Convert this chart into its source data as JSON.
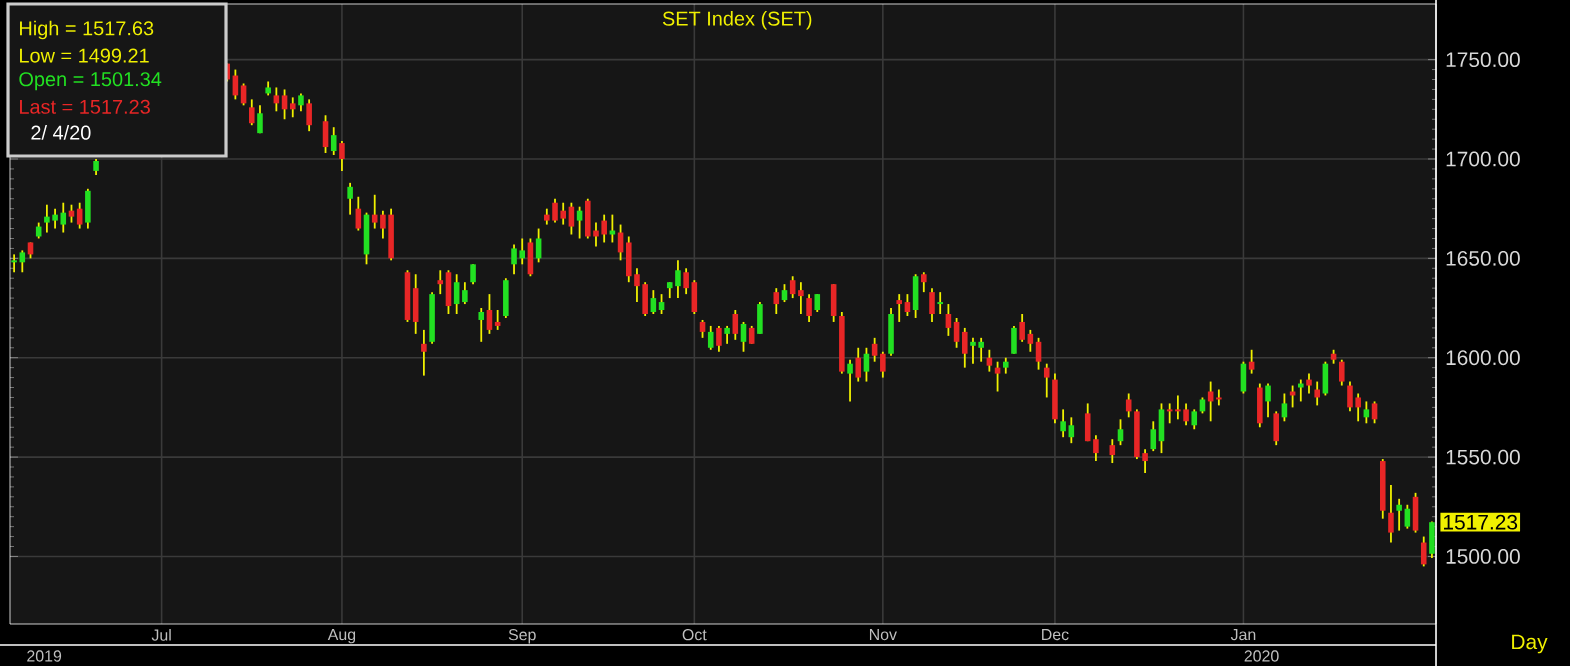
{
  "chart_data": {
    "type": "candlestick",
    "title": "SET Index (SET)",
    "categories": [
      null,
      null,
      null,
      null,
      null,
      null,
      null,
      null,
      null,
      null,
      null,
      null,
      null,
      null,
      null,
      null,
      null,
      null,
      "Jul",
      null,
      null,
      null,
      null,
      null,
      null,
      null,
      null,
      null,
      null,
      null,
      null,
      null,
      null,
      null,
      null,
      null,
      null,
      null,
      null,
      null,
      "Aug",
      null,
      null,
      null,
      null,
      null,
      null,
      null,
      null,
      null,
      null,
      null,
      null,
      null,
      null,
      null,
      null,
      null,
      null,
      null,
      null,
      null,
      "Sep",
      null,
      null,
      null,
      null,
      null,
      null,
      null,
      null,
      null,
      null,
      null,
      null,
      null,
      null,
      null,
      null,
      null,
      null,
      null,
      null,
      "Oct",
      null,
      null,
      null,
      null,
      null,
      null,
      null,
      null,
      null,
      null,
      null,
      null,
      null,
      null,
      null,
      null,
      null,
      null,
      null,
      null,
      null,
      null,
      "Nov",
      null,
      null,
      null,
      null,
      null,
      null,
      null,
      null,
      null,
      null,
      null,
      null,
      null,
      null,
      null,
      null,
      null,
      null,
      null,
      null,
      "Dec",
      null,
      null,
      null,
      null,
      null,
      null,
      null,
      null,
      null,
      null,
      null,
      null,
      null,
      null,
      null,
      null,
      null,
      null,
      null,
      null,
      null,
      null,
      "Jan",
      null,
      null,
      null,
      null,
      null,
      null,
      null,
      null,
      null,
      null,
      null,
      null,
      null,
      null,
      null,
      null,
      null,
      null,
      null,
      null,
      null,
      null,
      null
    ],
    "ohlc": [
      [
        1648,
        1652,
        1643,
        1649
      ],
      [
        1648,
        1654,
        1643,
        1653
      ],
      [
        1658,
        1658,
        1650,
        1652
      ],
      [
        1661,
        1668,
        1660,
        1666
      ],
      [
        1668,
        1677,
        1663,
        1671
      ],
      [
        1669,
        1675,
        1665,
        1672
      ],
      [
        1667,
        1678,
        1663,
        1673
      ],
      [
        1674,
        1677,
        1668,
        1671
      ],
      [
        1675,
        1678,
        1665,
        1667
      ],
      [
        1668,
        1685,
        1665,
        1684
      ],
      [
        1694,
        1700,
        1692,
        1699
      ],
      null,
      null,
      null,
      null,
      null,
      null,
      null,
      null,
      null,
      null,
      null,
      null,
      null,
      null,
      null,
      [
        1748,
        1748,
        1739,
        1740
      ],
      [
        1742,
        1745,
        1730,
        1732
      ],
      [
        1737,
        1738,
        1727,
        1728
      ],
      [
        1726,
        1730,
        1717,
        1718
      ],
      [
        1713,
        1727,
        1713,
        1723
      ],
      [
        1733,
        1739,
        1732,
        1736
      ],
      [
        1732,
        1736,
        1724,
        1728
      ],
      [
        1732,
        1735,
        1720,
        1725
      ],
      [
        1728,
        1731,
        1721,
        1725
      ],
      [
        1727,
        1733,
        1724,
        1732
      ],
      [
        1728,
        1730,
        1714,
        1717
      ],
      null,
      [
        1719,
        1722,
        1703,
        1706
      ],
      [
        1704,
        1716,
        1702,
        1712
      ],
      [
        1708,
        1709,
        1694,
        1700
      ],
      [
        1680,
        1688,
        1672,
        1686
      ],
      [
        1675,
        1681,
        1664,
        1665
      ],
      [
        1652,
        1673,
        1647,
        1672
      ],
      [
        1672,
        1682,
        1665,
        1668
      ],
      [
        1672,
        1674,
        1660,
        1665
      ],
      [
        1672,
        1675,
        1649,
        1650
      ],
      null,
      [
        1643,
        1644,
        1618,
        1619
      ],
      [
        1635,
        1642,
        1612,
        1618
      ],
      [
        1607,
        1614,
        1591,
        1603
      ],
      [
        1608,
        1633,
        1607,
        1632
      ],
      [
        1639,
        1644,
        1632,
        1637
      ],
      [
        1643,
        1644,
        1622,
        1626
      ],
      [
        1627,
        1642,
        1622,
        1638
      ],
      [
        1628,
        1638,
        1627,
        1634
      ],
      [
        1638,
        1647,
        1637,
        1647
      ],
      [
        1619,
        1625,
        1608,
        1623
      ],
      [
        1624,
        1632,
        1612,
        1614
      ],
      [
        1618,
        1624,
        1614,
        1616
      ],
      [
        1621,
        1640,
        1620,
        1639
      ],
      [
        1647,
        1657,
        1642,
        1655
      ],
      [
        1650,
        1660,
        1647,
        1654
      ],
      [
        1658,
        1660,
        1641,
        1642
      ],
      [
        1650,
        1665,
        1648,
        1660
      ],
      [
        1672,
        1675,
        1667,
        1669
      ],
      [
        1678,
        1680,
        1668,
        1669
      ],
      [
        1674,
        1678,
        1667,
        1670
      ],
      [
        1676,
        1678,
        1662,
        1666
      ],
      [
        1669,
        1676,
        1660,
        1674
      ],
      [
        1679,
        1680,
        1660,
        1661
      ],
      [
        1664,
        1668,
        1656,
        1661
      ],
      [
        1669,
        1672,
        1658,
        1662
      ],
      [
        1662,
        1672,
        1658,
        1664
      ],
      [
        1663,
        1667,
        1649,
        1653
      ],
      [
        1658,
        1661,
        1638,
        1641
      ],
      [
        1642,
        1645,
        1628,
        1636
      ],
      [
        1637,
        1638,
        1621,
        1622
      ],
      [
        1623,
        1634,
        1622,
        1630
      ],
      [
        1624,
        1632,
        1622,
        1628
      ],
      [
        1635,
        1638,
        1630,
        1638
      ],
      [
        1636,
        1649,
        1630,
        1644
      ],
      [
        1643,
        1645,
        1632,
        1635
      ],
      [
        1638,
        1639,
        1622,
        1623
      ],
      [
        1618,
        1619,
        1610,
        1613
      ],
      [
        1605,
        1616,
        1604,
        1613
      ],
      [
        1615,
        1616,
        1603,
        1606
      ],
      [
        1612,
        1616,
        1607,
        1615
      ],
      [
        1622,
        1624,
        1609,
        1612
      ],
      [
        1608,
        1618,
        1603,
        1617
      ],
      [
        1615,
        1616,
        1607,
        1607
      ],
      [
        1612,
        1628,
        1612,
        1627
      ],
      null,
      [
        1633,
        1635,
        1622,
        1627
      ],
      [
        1629,
        1637,
        1628,
        1634
      ],
      [
        1639,
        1641,
        1630,
        1632
      ],
      [
        1634,
        1638,
        1622,
        1631
      ],
      [
        1630,
        1632,
        1618,
        1621
      ],
      [
        1624,
        1632,
        1623,
        1632
      ],
      null,
      [
        1637,
        1637,
        1618,
        1621
      ],
      [
        1621,
        1623,
        1592,
        1593
      ],
      [
        1592,
        1599,
        1578,
        1597
      ],
      [
        1600,
        1605,
        1588,
        1590
      ],
      [
        1593,
        1605,
        1588,
        1602
      ],
      [
        1607,
        1610,
        1598,
        1601
      ],
      [
        1602,
        1603,
        1590,
        1593
      ],
      [
        1602,
        1625,
        1601,
        1622
      ],
      [
        1629,
        1632,
        1618,
        1627
      ],
      [
        1628,
        1632,
        1621,
        1623
      ],
      [
        1624,
        1642,
        1620,
        1641
      ],
      [
        1642,
        1643,
        1633,
        1638
      ],
      [
        1633,
        1635,
        1618,
        1622
      ],
      [
        1627,
        1633,
        1622,
        1628
      ],
      [
        1622,
        1627,
        1611,
        1615
      ],
      [
        1618,
        1620,
        1605,
        1608
      ],
      [
        1613,
        1615,
        1595,
        1602
      ],
      [
        1606,
        1610,
        1597,
        1608
      ],
      [
        1605,
        1610,
        1598,
        1608
      ],
      [
        1600,
        1604,
        1593,
        1596
      ],
      [
        1595,
        1598,
        1583,
        1592
      ],
      [
        1595,
        1600,
        1592,
        1598
      ],
      [
        1602,
        1616,
        1602,
        1615
      ],
      [
        1618,
        1622,
        1608,
        1609
      ],
      [
        1612,
        1614,
        1603,
        1607
      ],
      [
        1608,
        1610,
        1594,
        1598
      ],
      [
        1595,
        1597,
        1580,
        1590
      ],
      [
        1589,
        1592,
        1567,
        1569
      ],
      [
        1563,
        1574,
        1560,
        1568
      ],
      [
        1560,
        1570,
        1557,
        1566
      ],
      null,
      [
        1572,
        1577,
        1558,
        1558
      ],
      [
        1559,
        1561,
        1548,
        1552
      ],
      null,
      [
        1556,
        1559,
        1547,
        1551
      ],
      [
        1558,
        1569,
        1556,
        1564
      ],
      [
        1579,
        1582,
        1570,
        1573
      ],
      [
        1573,
        1574,
        1549,
        1550
      ],
      [
        1552,
        1554,
        1542,
        1548
      ],
      [
        1554,
        1568,
        1553,
        1564
      ],
      [
        1558,
        1577,
        1552,
        1574
      ],
      [
        1574,
        1577,
        1567,
        1573
      ],
      [
        1574,
        1581,
        1569,
        1573
      ],
      [
        1574,
        1577,
        1566,
        1568
      ],
      [
        1566,
        1574,
        1564,
        1573
      ],
      [
        1573,
        1580,
        1572,
        1579
      ],
      [
        1583,
        1588,
        1568,
        1578
      ],
      [
        1580,
        1584,
        1576,
        1579
      ],
      null,
      null,
      [
        1583,
        1598,
        1582,
        1597
      ],
      [
        1598,
        1604,
        1592,
        1594
      ],
      [
        1585,
        1587,
        1565,
        1567
      ],
      [
        1578,
        1587,
        1570,
        1586
      ],
      [
        1572,
        1573,
        1556,
        1558
      ],
      [
        1570,
        1582,
        1568,
        1577
      ],
      [
        1583,
        1586,
        1575,
        1581
      ],
      [
        1585,
        1589,
        1578,
        1587
      ],
      [
        1589,
        1592,
        1582,
        1586
      ],
      [
        1584,
        1588,
        1576,
        1580
      ],
      [
        1582,
        1598,
        1581,
        1597
      ],
      [
        1602,
        1604,
        1597,
        1599
      ],
      [
        1598,
        1599,
        1586,
        1588
      ],
      [
        1586,
        1588,
        1573,
        1575
      ],
      [
        1580,
        1582,
        1568,
        1575
      ],
      [
        1570,
        1578,
        1567,
        1574
      ],
      [
        1577,
        1578,
        1567,
        1569
      ],
      [
        1548,
        1549,
        1519,
        1523
      ],
      [
        1522,
        1536,
        1507,
        1512
      ],
      [
        1523,
        1529,
        1513,
        1526
      ],
      [
        1515,
        1526,
        1514,
        1524
      ],
      [
        1530,
        1532,
        1512,
        1513
      ],
      [
        1507,
        1510,
        1495,
        1496
      ],
      [
        1501.34,
        1517.63,
        1499.21,
        1517.23
      ]
    ],
    "ylim": [
      1466,
      1778
    ],
    "yticks": [
      {
        "value": 1500,
        "label": "1500.00"
      },
      {
        "value": 1550,
        "label": "1550.00"
      },
      {
        "value": 1600,
        "label": "1600.00"
      },
      {
        "value": 1650,
        "label": "1650.00"
      },
      {
        "value": 1700,
        "label": "1700.00"
      },
      {
        "value": 1750,
        "label": "1750.00"
      }
    ],
    "grid": true,
    "annotations": [
      "High  =  1517.63",
      "Low   =  1499.21",
      "Open  =  1501.34",
      "Last  =  1517.23",
      "2/ 4/20",
      "2019",
      "2020",
      "Day",
      "1517.23"
    ]
  }
}
